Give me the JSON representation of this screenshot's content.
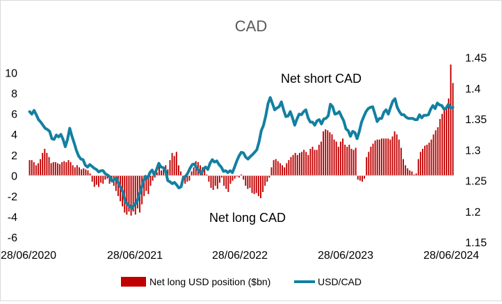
{
  "chart_data": {
    "type": "bar+line",
    "title": "CAD",
    "x_tick_labels": [
      "28/06/2020",
      "28/06/2021",
      "28/06/2022",
      "28/06/2023",
      "28/06/2024"
    ],
    "y_left": {
      "ticks": [
        "10",
        "8",
        "6",
        "4",
        "2",
        "0",
        "-2",
        "-4",
        "-6"
      ],
      "ylim": [
        -6,
        12
      ]
    },
    "y_right": {
      "ticks": [
        "1.45",
        "1.4",
        "1.35",
        "1.3",
        "1.25",
        "1.2",
        "1.15"
      ],
      "ylim": [
        1.15,
        1.47
      ]
    },
    "annotations": [
      "Net short CAD",
      "Net long CAD"
    ],
    "legend": {
      "position": "bottom",
      "entries": [
        "Net long USD position ($bn)",
        "USD/CAD"
      ]
    },
    "bar_series": {
      "name": "Net long USD position ($bn)",
      "color": "#c00000",
      "values": [
        1.5,
        1.5,
        1.3,
        1.0,
        1.2,
        1.6,
        2.2,
        2.6,
        2.2,
        1.8,
        1.2,
        1.3,
        1.3,
        1.2,
        1.1,
        1.3,
        1.4,
        1.3,
        1.5,
        1.3,
        1.0,
        0.8,
        1.0,
        0.8,
        0.6,
        0.7,
        0.6,
        0.5,
        0.2,
        -0.6,
        -1.1,
        -0.9,
        -1.1,
        -0.7,
        -0.8,
        -0.4,
        -0.3,
        -0.8,
        -0.6,
        -1.0,
        -1.5,
        -2.0,
        -2.5,
        -3.0,
        -3.6,
        -3.8,
        -3.5,
        -3.9,
        -3.5,
        -3.8,
        -3.2,
        -3.6,
        -2.8,
        -2.0,
        -1.5,
        -1.8,
        -1.0,
        -0.5,
        -0.2,
        0.3,
        1.2,
        0.5,
        0.8,
        1.0,
        0.6,
        1.5,
        2.2,
        1.9,
        2.3,
        1.0,
        0.4,
        -0.2,
        -0.8,
        -0.6,
        -0.5,
        0.4,
        0.8,
        1.4,
        1.3,
        1.0,
        0.8,
        0.6,
        0.1,
        -0.6,
        -1.2,
        -1.4,
        -1.0,
        -1.3,
        -0.7,
        -0.2,
        -1.0,
        -1.3,
        -1.6,
        -0.8,
        -0.5,
        -0.3,
        -0.1,
        -0.2,
        0.1,
        -0.4,
        -1.0,
        -1.3,
        -1.2,
        -1.7,
        -1.8,
        -1.7,
        -2.0,
        -2.2,
        -1.6,
        -1.0,
        -0.6,
        -0.2,
        0.8,
        1.5,
        1.6,
        1.4,
        1.2,
        1.0,
        0.8,
        1.2,
        1.5,
        1.8,
        2.0,
        2.2,
        2.0,
        2.2,
        2.3,
        2.5,
        2.3,
        2.0,
        2.6,
        2.8,
        2.5,
        2.5,
        3.0,
        3.3,
        4.3,
        4.5,
        4.4,
        4.2,
        4.0,
        3.5,
        3.3,
        2.8,
        3.3,
        3.6,
        3.0,
        2.8,
        3.0,
        2.6,
        2.5,
        2.7,
        -0.4,
        -0.5,
        -0.6,
        -0.3,
        1.8,
        2.3,
        2.8,
        3.1,
        3.4,
        3.5,
        3.5,
        3.6,
        3.6,
        3.6,
        3.6,
        3.5,
        3.8,
        4.3,
        4.0,
        3.5,
        2.7,
        1.6,
        1.0,
        0.7,
        0.5,
        0.4,
        0.1,
        0.2,
        1.6,
        2.3,
        2.6,
        2.9,
        3.0,
        3.2,
        3.5,
        4.0,
        4.4,
        4.7,
        5.5,
        6.0,
        6.6,
        6.8,
        7.5,
        10.8,
        9.0
      ]
    },
    "line_series": {
      "name": "USD/CAD",
      "color": "#1380a1",
      "values": [
        1.362,
        1.358,
        1.364,
        1.357,
        1.349,
        1.345,
        1.34,
        1.335,
        1.333,
        1.33,
        1.318,
        1.317,
        1.324,
        1.321,
        1.325,
        1.317,
        1.305,
        1.317,
        1.335,
        1.322,
        1.311,
        1.299,
        1.29,
        1.285,
        1.284,
        1.275,
        1.272,
        1.276,
        1.273,
        1.27,
        1.268,
        1.264,
        1.266,
        1.266,
        1.261,
        1.259,
        1.256,
        1.249,
        1.252,
        1.254,
        1.244,
        1.238,
        1.23,
        1.215,
        1.212,
        1.208,
        1.205,
        1.212,
        1.213,
        1.225,
        1.235,
        1.248,
        1.257,
        1.254,
        1.263,
        1.267,
        1.259,
        1.268,
        1.278,
        1.272,
        1.271,
        1.266,
        1.25,
        1.248,
        1.245,
        1.247,
        1.243,
        1.238,
        1.24,
        1.255,
        1.257,
        1.262,
        1.27,
        1.276,
        1.277,
        1.27,
        1.266,
        1.261,
        1.269,
        1.272,
        1.268,
        1.278,
        1.284,
        1.28,
        1.282,
        1.276,
        1.272,
        1.265,
        1.266,
        1.263,
        1.266,
        1.263,
        1.272,
        1.282,
        1.29,
        1.296,
        1.295,
        1.288,
        1.285,
        1.289,
        1.292,
        1.296,
        1.3,
        1.313,
        1.331,
        1.34,
        1.355,
        1.375,
        1.385,
        1.375,
        1.365,
        1.368,
        1.37,
        1.378,
        1.365,
        1.354,
        1.355,
        1.362,
        1.352,
        1.34,
        1.35,
        1.358,
        1.357,
        1.362,
        1.365,
        1.352,
        1.345,
        1.345,
        1.34,
        1.347,
        1.349,
        1.342,
        1.35,
        1.351,
        1.355,
        1.374,
        1.37,
        1.358,
        1.359,
        1.362,
        1.354,
        1.347,
        1.334,
        1.331,
        1.322,
        1.33,
        1.328,
        1.318,
        1.33,
        1.345,
        1.354,
        1.362,
        1.367,
        1.369,
        1.37,
        1.358,
        1.346,
        1.351,
        1.351,
        1.361,
        1.365,
        1.358,
        1.369,
        1.379,
        1.383,
        1.369,
        1.362,
        1.357,
        1.357,
        1.353,
        1.351,
        1.351,
        1.351,
        1.349,
        1.349,
        1.357,
        1.352,
        1.356,
        1.356,
        1.357,
        1.366,
        1.372,
        1.367,
        1.376,
        1.373,
        1.372,
        1.366,
        1.368,
        1.374,
        1.368,
        1.369
      ]
    }
  }
}
